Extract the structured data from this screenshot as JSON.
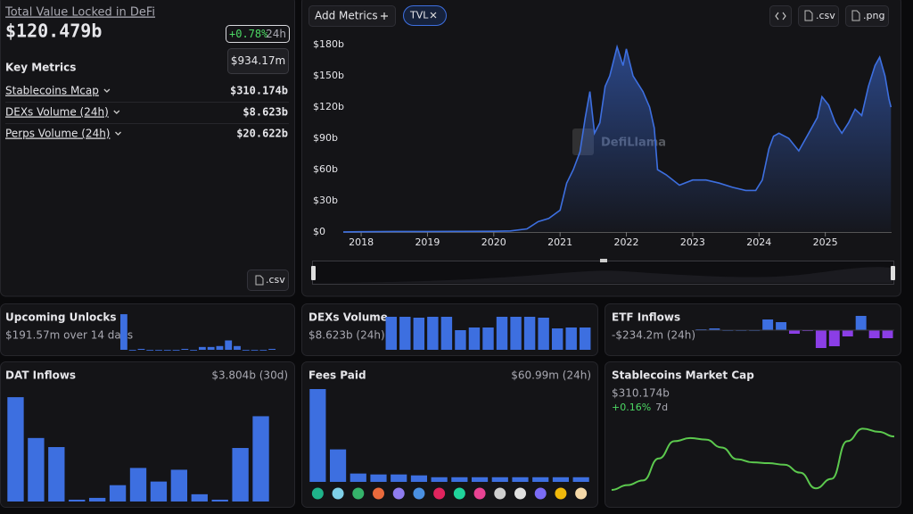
{
  "header": {
    "title": "Total Value Locked in DeFi",
    "value": "$120.479b",
    "change": "+0.78%",
    "change_period": "24h",
    "tooltip": "$934.17m"
  },
  "key_metrics": {
    "title": "Key Metrics",
    "rows": [
      {
        "label": "Stablecoins Mcap",
        "value": "$310.174b"
      },
      {
        "label": "DEXs Volume (24h)",
        "value": "$8.623b"
      },
      {
        "label": "Perps Volume (24h)",
        "value": "$20.622b"
      }
    ]
  },
  "left_csv": ".csv",
  "toolbar": {
    "add_metrics": "Add Metrics",
    "chip": "TVL",
    "csv": ".csv",
    "png": ".png"
  },
  "watermark": "DefiLlama",
  "tvl_chart": {
    "type": "area",
    "color": "#3d6fe0",
    "grid": false,
    "x": [
      2017.73,
      2018,
      2018.5,
      2019,
      2019.5,
      2020,
      2020.25,
      2020.5,
      2020.67,
      2020.83,
      2021,
      2021.1,
      2021.2,
      2021.3,
      2021.38,
      2021.45,
      2021.52,
      2021.6,
      2021.68,
      2021.75,
      2021.86,
      2021.95,
      2022.0,
      2022.1,
      2022.25,
      2022.35,
      2022.42,
      2022.47,
      2022.6,
      2022.8,
      2023.0,
      2023.2,
      2023.4,
      2023.6,
      2023.8,
      2023.95,
      2024.05,
      2024.15,
      2024.22,
      2024.3,
      2024.45,
      2024.6,
      2024.75,
      2024.88,
      2024.95,
      2025.05,
      2025.15,
      2025.25,
      2025.35,
      2025.45,
      2025.55,
      2025.65,
      2025.75,
      2025.82,
      2025.9,
      2025.96,
      2025.99
    ],
    "values": [
      0.1,
      0.3,
      0.5,
      0.5,
      0.6,
      0.7,
      1,
      3,
      10,
      13,
      21,
      47,
      60,
      77,
      110,
      135,
      95,
      105,
      140,
      150,
      178,
      160,
      176,
      150,
      135,
      120,
      100,
      60,
      55,
      45,
      50,
      50,
      47,
      43,
      40,
      40,
      50,
      80,
      92,
      95,
      90,
      78,
      95,
      110,
      130,
      122,
      105,
      95,
      105,
      118,
      112,
      140,
      160,
      168,
      150,
      128,
      120
    ],
    "xlim": [
      2017.73,
      2026.0
    ],
    "ylim": [
      0,
      187
    ],
    "xticks": [
      2018,
      2019,
      2020,
      2021,
      2022,
      2023,
      2024,
      2025
    ],
    "yticks": [
      {
        "value": 0,
        "label": "$0"
      },
      {
        "value": 30,
        "label": "$30b"
      },
      {
        "value": 60,
        "label": "$60b"
      },
      {
        "value": 90,
        "label": "$90b"
      },
      {
        "value": 120,
        "label": "$120b"
      },
      {
        "value": 150,
        "label": "$150b"
      },
      {
        "value": 180,
        "label": "$180b"
      }
    ]
  },
  "panels": [
    {
      "title": "Upcoming Unlocks",
      "subtitle": "$191.57m over 14 days",
      "chart": {
        "type": "bar",
        "color": "#3d6fe0",
        "ylim": [
          0,
          40
        ],
        "values": [
          38,
          0,
          1,
          0,
          0,
          0,
          0,
          1,
          0,
          3,
          3,
          4,
          10,
          4,
          0,
          0,
          0,
          1
        ]
      }
    },
    {
      "title": "DEXs Volume",
      "subtitle": "$8.623b (24h)",
      "chart": {
        "type": "bar",
        "color": "#3d6fe0",
        "ylim": [
          0,
          40
        ],
        "values": [
          37,
          37,
          36,
          37,
          37,
          22,
          25,
          25,
          37,
          37,
          37,
          36,
          24,
          25,
          25
        ]
      }
    },
    {
      "title": "ETF Inflows",
      "subtitle": "-$234.2m (24h)",
      "chart": {
        "type": "bar",
        "color": "#3d6fe0",
        "negative_color": "#8b3ee6",
        "ylim": [
          -20,
          20
        ],
        "values": [
          1,
          2,
          0,
          0,
          0,
          12,
          9,
          -4,
          -1,
          -20,
          -18,
          -7,
          16,
          -9,
          -9
        ]
      }
    },
    {
      "title": "DAT Inflows",
      "subtitle": "$3.804b (30d)",
      "chart": {
        "type": "bar",
        "color": "#3d6fe0",
        "ylim": [
          0,
          120
        ],
        "values": [
          115,
          70,
          60,
          2,
          4,
          18,
          37,
          22,
          35,
          8,
          2,
          59,
          94
        ]
      }
    },
    {
      "title": "Fees Paid",
      "subtitle": "$60.99m (24h)",
      "chart": {
        "type": "bar",
        "color": "#3d6fe0",
        "ylim": [
          0,
          100
        ],
        "values": [
          100,
          35,
          9,
          8,
          8,
          7,
          5,
          5,
          5,
          5,
          5,
          5,
          5,
          5
        ]
      }
    },
    {
      "title": "Stablecoins Market Cap",
      "subtitle": "$310.174b",
      "change": "+0.16%",
      "change_period": "7d",
      "chart": {
        "type": "line",
        "color": "#5cc94e",
        "ylim": [
          0,
          100
        ],
        "values": [
          8,
          14,
          20,
          48,
          70,
          74,
          72,
          62,
          47,
          43,
          42,
          40,
          30,
          10,
          22,
          70,
          86,
          82,
          76
        ]
      }
    }
  ]
}
